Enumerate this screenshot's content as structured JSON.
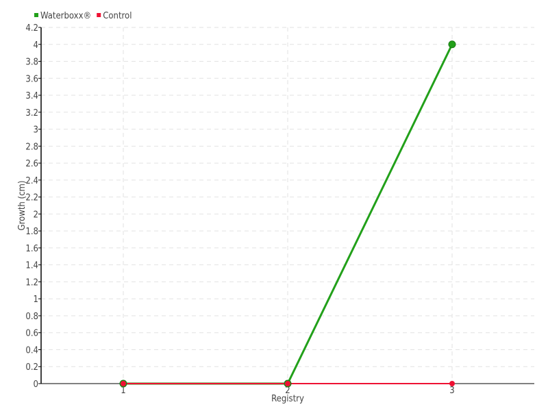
{
  "chart_data": {
    "type": "line",
    "title": "",
    "xlabel": "Registry",
    "ylabel": "Growth (cm)",
    "x": [
      1,
      2,
      3
    ],
    "xlim": [
      0.5,
      3.5
    ],
    "ylim": [
      0,
      4.2
    ],
    "y_ticks": [
      "0",
      "0.2",
      "0.4",
      "0.6",
      "0.8",
      "1",
      "1.2",
      "1.4",
      "1.6",
      "1.8",
      "2",
      "2.2",
      "2.4",
      "2.6",
      "2.8",
      "3",
      "3.2",
      "3.4",
      "3.6",
      "3.8",
      "4",
      "4.2"
    ],
    "x_ticks": [
      "1",
      "2",
      "3"
    ],
    "grid": true,
    "legend_placement": "top-left",
    "series": [
      {
        "name": "Waterboxx®",
        "color": "#22a01a",
        "values": [
          0,
          0,
          4
        ]
      },
      {
        "name": "Control",
        "color": "#ee1133",
        "values": [
          0,
          0,
          0
        ]
      }
    ]
  }
}
